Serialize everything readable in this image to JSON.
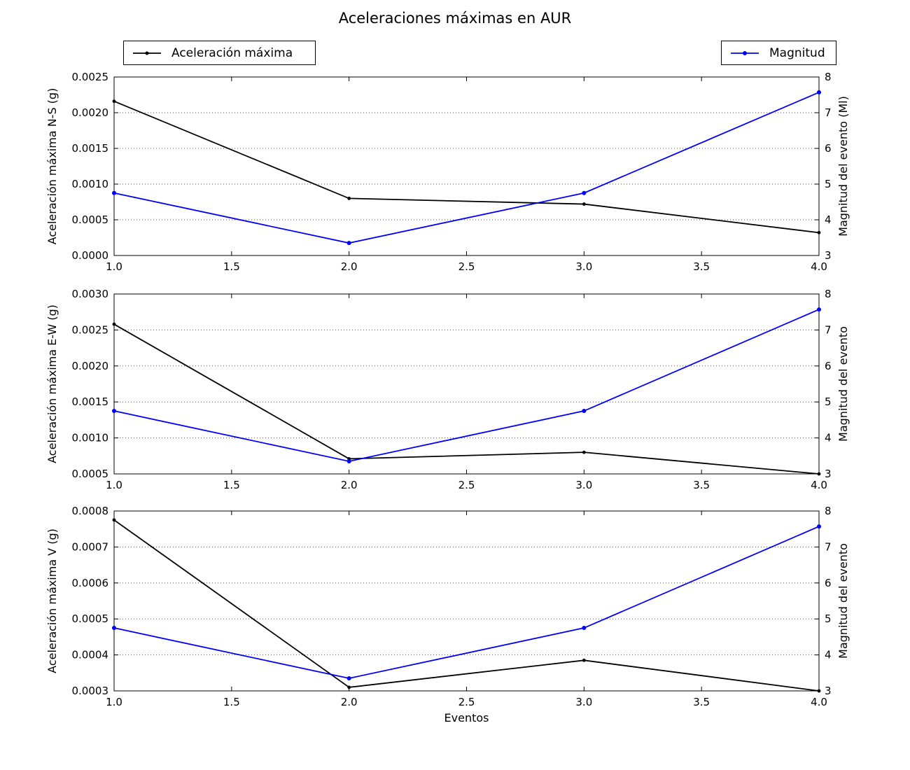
{
  "figure": {
    "title": "Aceleraciones máximas en AUR",
    "legend_left": "Aceleración máxima",
    "legend_right": "Magnitud",
    "accel_color": "#000000",
    "mag_color": "#0000ff"
  },
  "chart_data": [
    {
      "type": "line",
      "subplot": "N-S",
      "x": [
        1,
        2,
        3,
        4
      ],
      "series": [
        {
          "name": "Aceleración máxima",
          "axis": "left",
          "color": "#000000",
          "values": [
            0.00216,
            0.0008,
            0.00072,
            0.00032
          ]
        },
        {
          "name": "Magnitud",
          "axis": "right",
          "color": "#0000ff",
          "values": [
            4.75,
            3.35,
            4.75,
            7.57
          ]
        }
      ],
      "ylabel_left": "Aceleración máxima N-S (g)",
      "ylabel_right": "Magnitud del evento (Ml)",
      "ylim_left": [
        0.0,
        0.0025
      ],
      "ylim_right": [
        3,
        8
      ],
      "yticks_left": [
        "0.0000",
        "0.0005",
        "0.0010",
        "0.0015",
        "0.0020",
        "0.0025"
      ],
      "yticks_right": [
        "3",
        "4",
        "5",
        "6",
        "7",
        "8"
      ],
      "xlim": [
        1.0,
        4.0
      ],
      "xticks": [
        "1.0",
        "1.5",
        "2.0",
        "2.5",
        "3.0",
        "3.5",
        "4.0"
      ],
      "grid": "dotted",
      "xlabel": ""
    },
    {
      "type": "line",
      "subplot": "E-W",
      "x": [
        1,
        2,
        3,
        4
      ],
      "series": [
        {
          "name": "Aceleración máxima",
          "axis": "left",
          "color": "#000000",
          "values": [
            0.00258,
            0.00071,
            0.0008,
            0.0005
          ]
        },
        {
          "name": "Magnitud",
          "axis": "right",
          "color": "#0000ff",
          "values": [
            4.75,
            3.35,
            4.75,
            7.57
          ]
        }
      ],
      "ylabel_left": "Aceleración máxima E-W (g)",
      "ylabel_right": "Magnitud del evento",
      "ylim_left": [
        0.0005,
        0.003
      ],
      "ylim_right": [
        3,
        8
      ],
      "yticks_left": [
        "0.0005",
        "0.0010",
        "0.0015",
        "0.0020",
        "0.0025",
        "0.0030"
      ],
      "yticks_right": [
        "3",
        "4",
        "5",
        "6",
        "7",
        "8"
      ],
      "xlim": [
        1.0,
        4.0
      ],
      "xticks": [
        "1.0",
        "1.5",
        "2.0",
        "2.5",
        "3.0",
        "3.5",
        "4.0"
      ],
      "grid": "dotted",
      "xlabel": ""
    },
    {
      "type": "line",
      "subplot": "V",
      "x": [
        1,
        2,
        3,
        4
      ],
      "series": [
        {
          "name": "Aceleración máxima",
          "axis": "left",
          "color": "#000000",
          "values": [
            0.000775,
            0.00031,
            0.000385,
            0.0003
          ]
        },
        {
          "name": "Magnitud",
          "axis": "right",
          "color": "#0000ff",
          "values": [
            4.75,
            3.35,
            4.75,
            7.57
          ]
        }
      ],
      "ylabel_left": "Aceleración máxima V (g)",
      "ylabel_right": "Magnitud del evento",
      "ylim_left": [
        0.0003,
        0.0008
      ],
      "ylim_right": [
        3,
        8
      ],
      "yticks_left": [
        "0.0003",
        "0.0004",
        "0.0005",
        "0.0006",
        "0.0007",
        "0.0008"
      ],
      "yticks_right": [
        "3",
        "4",
        "5",
        "6",
        "7",
        "8"
      ],
      "xlim": [
        1.0,
        4.0
      ],
      "xticks": [
        "1.0",
        "1.5",
        "2.0",
        "2.5",
        "3.0",
        "3.5",
        "4.0"
      ],
      "grid": "dotted",
      "xlabel": "Eventos"
    }
  ]
}
